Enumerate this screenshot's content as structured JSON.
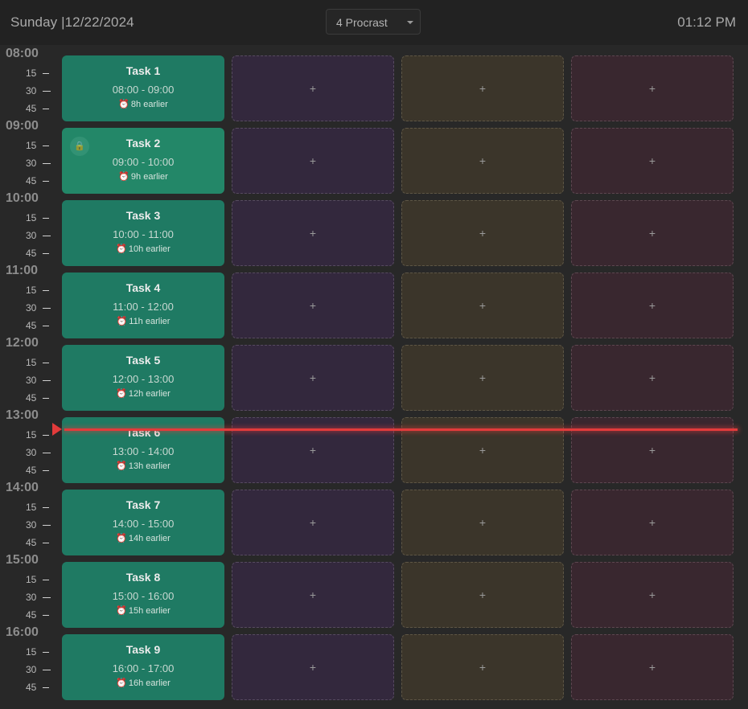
{
  "header": {
    "day": "Sunday",
    "separator": "|",
    "date": "12/22/2024",
    "view_selector": "4 Procrast",
    "clock": "01:12 PM"
  },
  "hours": [
    {
      "hour": "08:00",
      "minutes": [
        "15",
        "30",
        "45"
      ]
    },
    {
      "hour": "09:00",
      "minutes": [
        "15",
        "30",
        "45"
      ]
    },
    {
      "hour": "10:00",
      "minutes": [
        "15",
        "30",
        "45"
      ]
    },
    {
      "hour": "11:00",
      "minutes": [
        "15",
        "30",
        "45"
      ]
    },
    {
      "hour": "12:00",
      "minutes": [
        "15",
        "30",
        "45"
      ]
    },
    {
      "hour": "13:00",
      "minutes": [
        "15",
        "30",
        "45"
      ]
    },
    {
      "hour": "14:00",
      "minutes": [
        "15",
        "30",
        "45"
      ]
    },
    {
      "hour": "15:00",
      "minutes": [
        "15",
        "30",
        "45"
      ]
    },
    {
      "hour": "16:00",
      "minutes": [
        "15",
        "30",
        "45"
      ]
    }
  ],
  "tasks": [
    {
      "title": "Task 1",
      "time": "08:00 - 09:00",
      "due": "8h earlier",
      "locked": false
    },
    {
      "title": "Task 2",
      "time": "09:00 - 10:00",
      "due": "9h earlier",
      "locked": true
    },
    {
      "title": "Task 3",
      "time": "10:00 - 11:00",
      "due": "10h earlier",
      "locked": false
    },
    {
      "title": "Task 4",
      "time": "11:00 - 12:00",
      "due": "11h earlier",
      "locked": false
    },
    {
      "title": "Task 5",
      "time": "12:00 - 13:00",
      "due": "12h earlier",
      "locked": false
    },
    {
      "title": "Task 6",
      "time": "13:00 - 14:00",
      "due": "13h earlier",
      "locked": false
    },
    {
      "title": "Task 7",
      "time": "14:00 - 15:00",
      "due": "14h earlier",
      "locked": false
    },
    {
      "title": "Task 8",
      "time": "15:00 - 16:00",
      "due": "15h earlier",
      "locked": false
    },
    {
      "title": "Task 9",
      "time": "16:00 - 17:00",
      "due": "16h earlier",
      "locked": false
    }
  ],
  "icons": {
    "alarm": "alarm-clock-icon",
    "lock": "lock-icon",
    "add": "plus-icon"
  },
  "add_symbol": "+",
  "alarm_symbol": "⏰",
  "lock_symbol": "🔒",
  "colors": {
    "task": "#1f7a63",
    "column_2": "#33283d",
    "column_3": "#3b352a",
    "column_4": "#39272f",
    "now_line": "#e23b3b"
  },
  "current_time": "13:12"
}
